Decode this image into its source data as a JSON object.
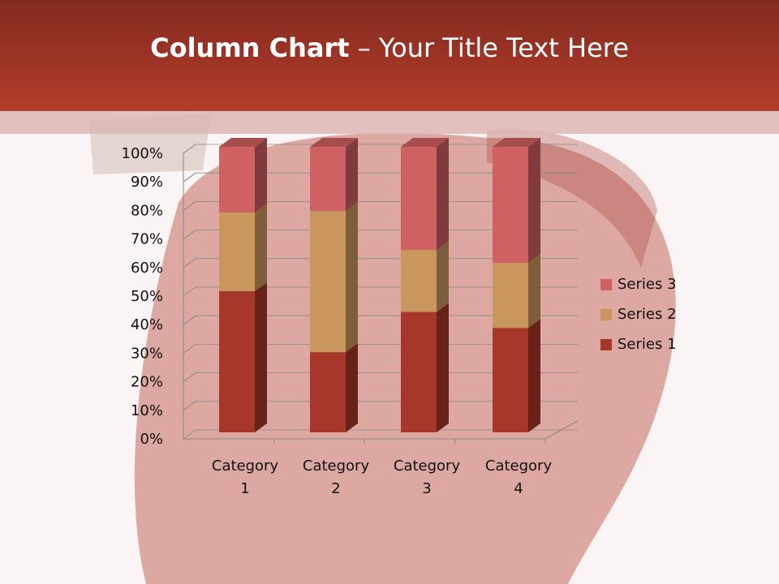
{
  "title": {
    "bold": "Column Chart",
    "rest": " – Your Title Text Here"
  },
  "chart_data": {
    "type": "bar",
    "subtype": "100% stacked 3D column",
    "categories": [
      "Category 1",
      "Category 2",
      "Category 3",
      "Category 4"
    ],
    "category_labels": [
      [
        "Category",
        "1"
      ],
      [
        "Category",
        "2"
      ],
      [
        "Category",
        "3"
      ],
      [
        "Category",
        "4"
      ]
    ],
    "series": [
      {
        "name": "Series 1",
        "values": [
          4.3,
          2.5,
          3.5,
          4.5
        ],
        "color": "#a6372a"
      },
      {
        "name": "Series 2",
        "values": [
          2.4,
          4.4,
          1.8,
          2.8
        ],
        "color": "#c9965e"
      },
      {
        "name": "Series 3",
        "values": [
          2,
          2,
          3,
          5
        ],
        "color": "#cf6162"
      }
    ],
    "yticks": [
      "0%",
      "10%",
      "20%",
      "30%",
      "40%",
      "50%",
      "60%",
      "70%",
      "80%",
      "90%",
      "100%"
    ],
    "ylim": [
      0,
      100
    ],
    "grid": true,
    "legend": "right"
  }
}
